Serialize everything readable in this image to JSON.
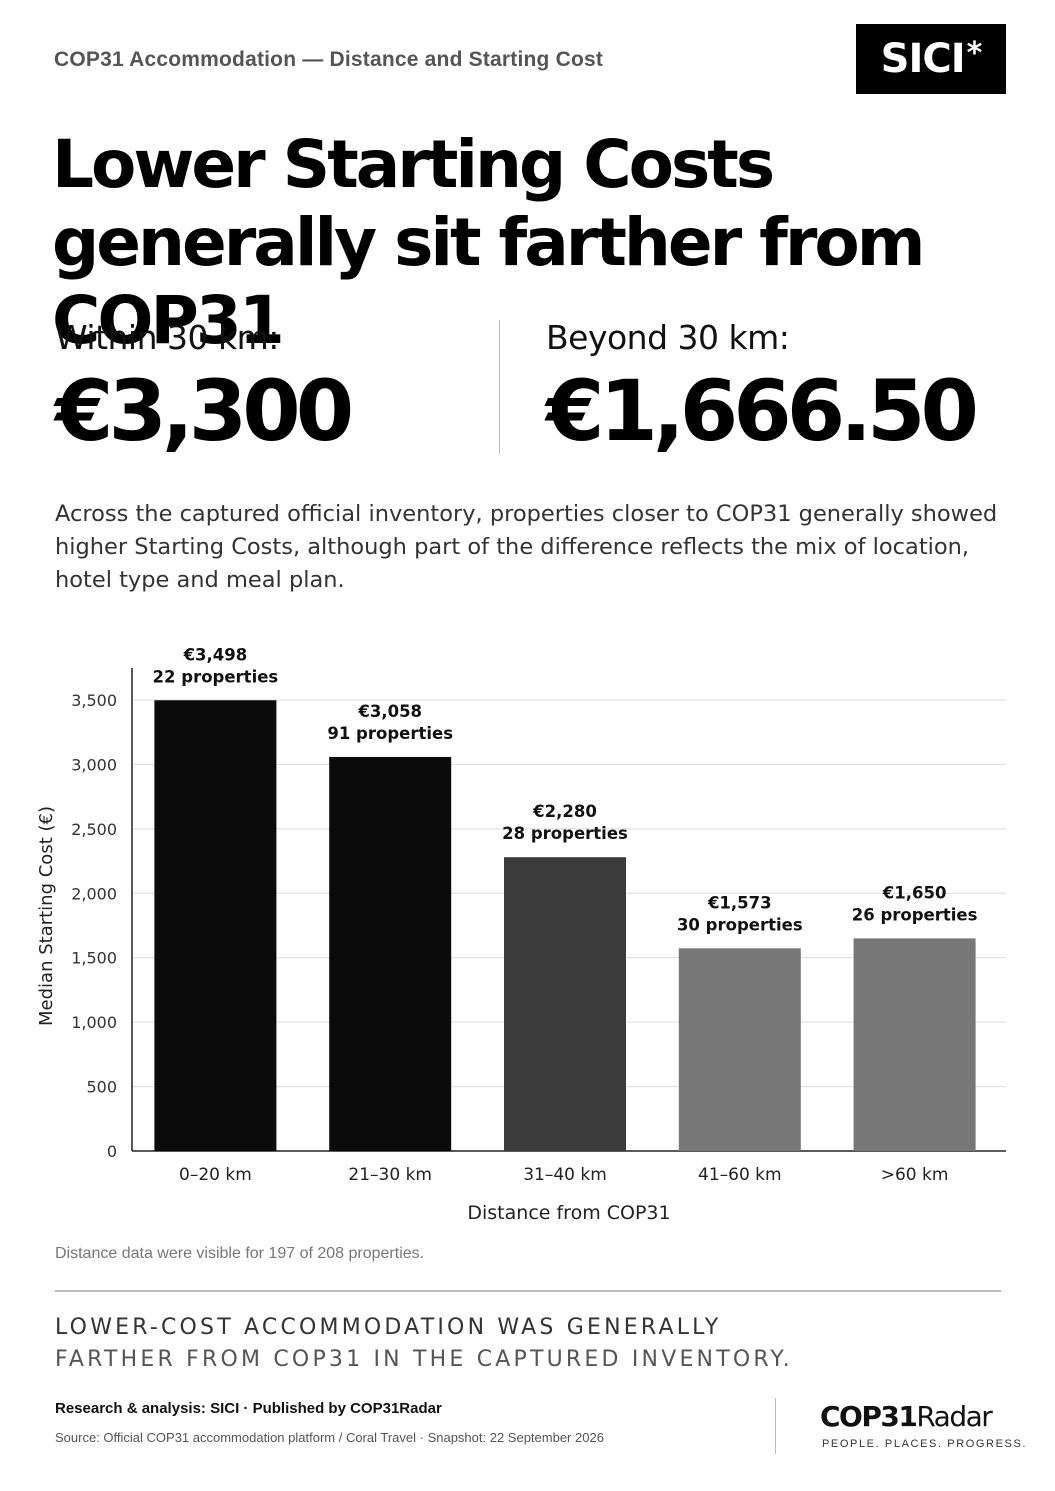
{
  "header": {
    "kicker": "COP31 Accommodation — Distance and Starting Cost",
    "brand": "SICI",
    "brand_mark": "*"
  },
  "headline": {
    "line1": "Lower Starting Costs",
    "line2": "generally sit farther from COP31"
  },
  "stats": {
    "within": {
      "label": "Within 30 km:",
      "value": "€3,300"
    },
    "beyond": {
      "label": "Beyond 30 km:",
      "value": "€1,666.50"
    }
  },
  "intro": "Across the captured official inventory, properties closer to COP31 generally showed higher Starting Costs, although part of the difference reflects the mix of location, hotel type and meal plan.",
  "chart_data": {
    "type": "bar",
    "title": "",
    "xlabel": "Distance from COP31",
    "ylabel": "Median Starting Cost (€)",
    "ylim": [
      0,
      3700
    ],
    "yticks": [
      0,
      500,
      1000,
      1500,
      2000,
      2500,
      3000,
      3500
    ],
    "ytick_labels": [
      "0",
      "500",
      "1,000",
      "1,500",
      "2,000",
      "2,500",
      "3,000",
      "3,500"
    ],
    "grid": "horizontal",
    "categories": [
      "0–20 km",
      "21–30 km",
      "31–40 km",
      "41–60 km",
      ">60 km"
    ],
    "values": [
      3498,
      3058,
      2280,
      1573,
      1650
    ],
    "value_labels": [
      "€3,498",
      "€3,058",
      "€2,280",
      "€1,573",
      "€1,650"
    ],
    "count_labels": [
      "22 properties",
      "91 properties",
      "28 properties",
      "30 properties",
      "26 properties"
    ],
    "bar_colors": [
      "#0b0b0b",
      "#0b0b0b",
      "#3b3b3b",
      "#777777",
      "#777777"
    ]
  },
  "footnote": "Distance data were visible for 197 of 208 properties.",
  "conclusion": {
    "line1": "LOWER-COST ACCOMMODATION WAS GENERALLY",
    "line2": "FARTHER FROM COP31 IN THE CAPTURED INVENTORY."
  },
  "footer": {
    "credit": "Research & analysis: SICI · Published by COP31Radar",
    "source": "Source: Official COP31 accommodation platform / Coral Travel · Snapshot: 22 September 2026",
    "logo_bold": "COP31",
    "logo_light": "Radar",
    "tagline": "PEOPLE. PLACES. PROGRESS."
  }
}
